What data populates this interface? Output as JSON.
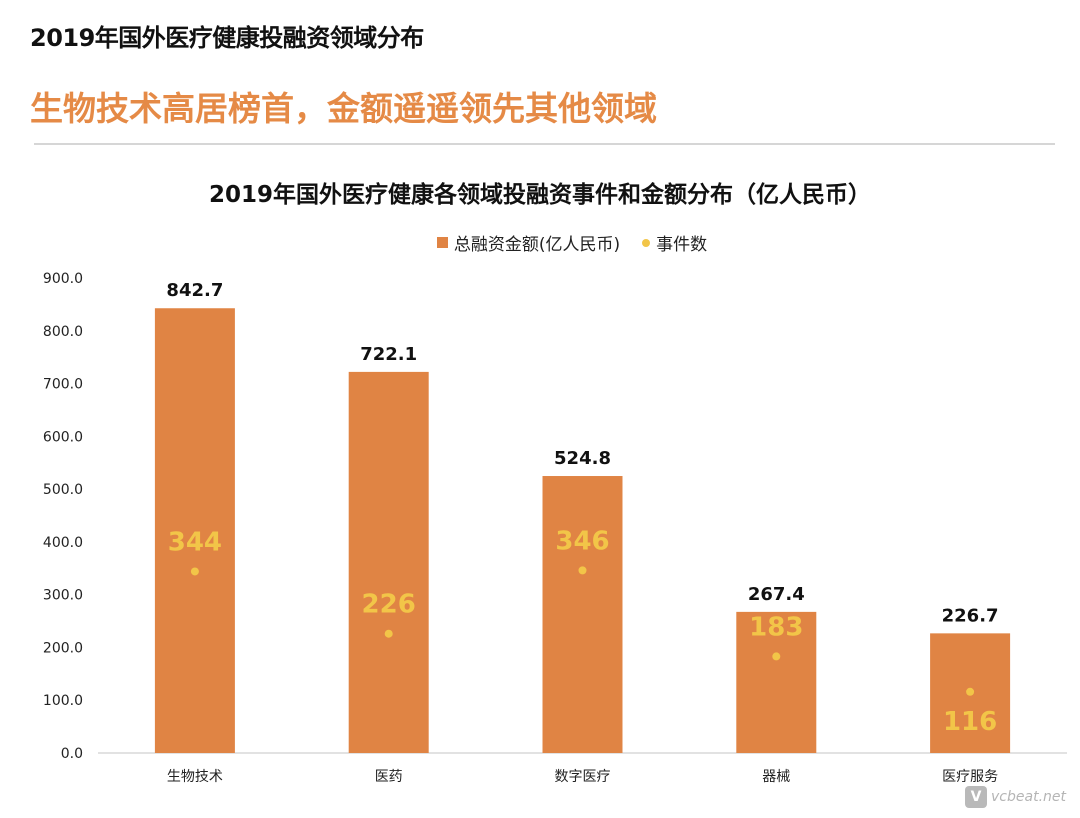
{
  "page": {
    "heading": "2019年国外医疗健康投融资领域分布",
    "subheading": "生物技术高居榜首，金额遥遥领先其他领域"
  },
  "colors": {
    "bar": "#e08444",
    "dot": "#f2c548",
    "subheading": "#e58a46",
    "axis": "#d9d9d9"
  },
  "legend": {
    "bar_label": "总融资金额(亿人民币)",
    "dot_label": "事件数"
  },
  "watermark": {
    "logo_text": "V",
    "text": "vcbeat.net"
  },
  "chart_data": {
    "type": "bar",
    "title": "2019年国外医疗健康各领域投融资事件和金额分布（亿人民币）",
    "categories": [
      "生物技术",
      "医药",
      "数字医疗",
      "器械",
      "医疗服务"
    ],
    "series": [
      {
        "name": "总融资金额(亿人民币)",
        "type": "bar",
        "values": [
          842.7,
          722.1,
          524.8,
          267.4,
          226.7
        ],
        "value_labels": [
          "842.7",
          "722.1",
          "524.8",
          "267.4",
          "226.7"
        ]
      },
      {
        "name": "事件数",
        "type": "scatter",
        "values": [
          344,
          226,
          346,
          183,
          116
        ]
      }
    ],
    "ylim": [
      0,
      900
    ],
    "yticks": [
      "0.0",
      "100.0",
      "200.0",
      "300.0",
      "400.0",
      "500.0",
      "600.0",
      "700.0",
      "800.0",
      "900.0"
    ],
    "secondary_ylim": [
      0,
      900
    ],
    "grid": false,
    "legend_position": "top"
  }
}
